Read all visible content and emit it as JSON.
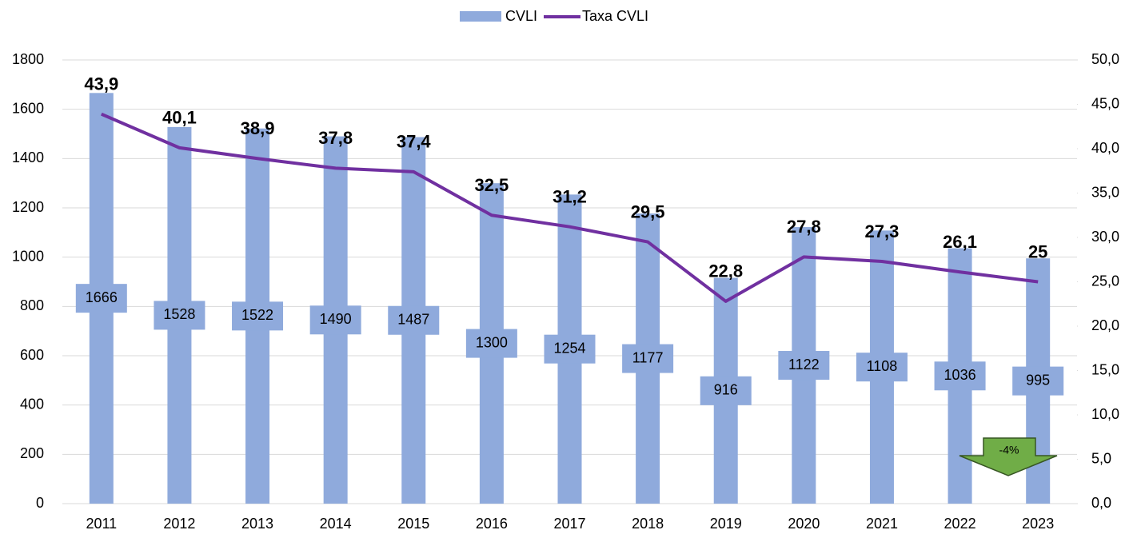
{
  "chart_data": {
    "type": "bar_line",
    "categories": [
      "2011",
      "2012",
      "2013",
      "2014",
      "2015",
      "2016",
      "2017",
      "2018",
      "2019",
      "2020",
      "2021",
      "2022",
      "2023"
    ],
    "series": [
      {
        "name": "CVLI",
        "color": "#8faadc",
        "values": [
          1666,
          1528,
          1522,
          1490,
          1487,
          1300,
          1254,
          1177,
          916,
          1122,
          1108,
          1036,
          995
        ]
      },
      {
        "name": "Taxa CVLI",
        "color": "#7030a0",
        "axis": "y2",
        "values": [
          43.9,
          40.1,
          38.9,
          37.8,
          37.4,
          32.5,
          31.2,
          29.5,
          22.8,
          27.8,
          27.3,
          26.1,
          25
        ],
        "value_labels": [
          "43,9",
          "40,1",
          "38,9",
          "37,8",
          "37,4",
          "32,5",
          "31,2",
          "29,5",
          "22,8",
          "27,8",
          "27,3",
          "26,1",
          "25"
        ]
      }
    ],
    "ylim": [
      0,
      1800
    ],
    "yticks": [
      0,
      200,
      400,
      600,
      800,
      1000,
      1200,
      1400,
      1600,
      1800
    ],
    "y2lim": [
      0,
      50
    ],
    "y2ticks": [
      {
        "value": 0,
        "label": "0,0"
      },
      {
        "value": 5,
        "label": "5,0"
      },
      {
        "value": 10,
        "label": "10,0"
      },
      {
        "value": 15,
        "label": "15,0"
      },
      {
        "value": 20,
        "label": "20,0"
      },
      {
        "value": 25,
        "label": "25,0"
      },
      {
        "value": 30,
        "label": "30,0"
      },
      {
        "value": 35,
        "label": "35,0"
      },
      {
        "value": 40,
        "label": "40,0"
      },
      {
        "value": 45,
        "label": "45,0"
      },
      {
        "value": 50,
        "label": "50,0"
      }
    ],
    "grid": true,
    "legend": "top",
    "annotation": "-4%"
  }
}
